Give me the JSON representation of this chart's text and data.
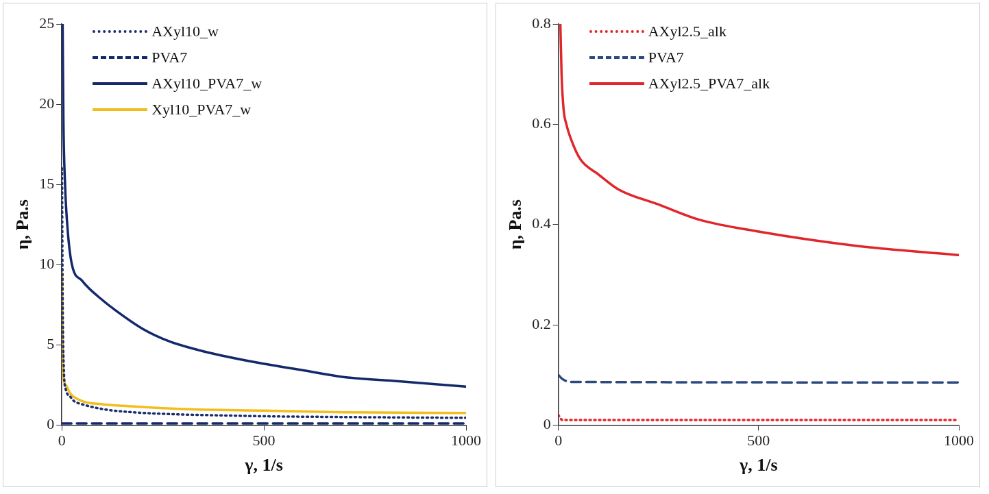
{
  "chart_data": [
    {
      "type": "line",
      "xlabel": "γ, 1/s",
      "ylabel": "η, Pa.s",
      "xlim": [
        0,
        1000
      ],
      "xticks": [
        0,
        500,
        1000
      ],
      "ylim": [
        0,
        25
      ],
      "yticks": [
        0,
        5,
        10,
        15,
        20,
        25
      ],
      "grid": false,
      "legend": "top",
      "marker": "none",
      "series": [
        {
          "name": "AXyl10_w",
          "color": "#1b2f6e",
          "line_style": "dotted",
          "x": [
            0.5,
            2,
            5,
            10,
            20,
            30,
            50,
            100,
            150,
            250,
            400,
            500,
            700,
            1000
          ],
          "values": [
            16,
            8,
            3.5,
            2.2,
            1.8,
            1.5,
            1.3,
            1.0,
            0.85,
            0.7,
            0.6,
            0.55,
            0.5,
            0.45
          ]
        },
        {
          "name": "PVA7",
          "color": "#14296b",
          "line_style": "dashed",
          "x": [
            0,
            1000
          ],
          "values": [
            0.1,
            0.1
          ]
        },
        {
          "name": "AXyl10_PVA7_w",
          "color": "#14296b",
          "line_style": "solid",
          "x": [
            2,
            4,
            8,
            15,
            25,
            50,
            68,
            100,
            125,
            200,
            268,
            350,
            482,
            600,
            696,
            850,
            1000
          ],
          "values": [
            25,
            19,
            15,
            12,
            10,
            9.0,
            8.5,
            7.8,
            7.3,
            6.0,
            5.2,
            4.6,
            3.9,
            3.4,
            3.0,
            2.7,
            2.4
          ]
        },
        {
          "name": "Xyl10_PVA7_w",
          "color": "#f2bd1d",
          "line_style": "solid",
          "x": [
            0.5,
            2,
            4,
            10,
            20,
            50,
            100,
            150,
            300,
            500,
            700,
            1000
          ],
          "values": [
            9.5,
            5,
            3,
            2.5,
            2,
            1.5,
            1.3,
            1.2,
            1.0,
            0.9,
            0.8,
            0.75
          ]
        }
      ]
    },
    {
      "type": "line",
      "xlabel": "γ, 1/s",
      "ylabel": "η, Pa.s",
      "xlim": [
        0,
        1000
      ],
      "xticks": [
        0,
        500,
        1000
      ],
      "ylim": [
        0,
        0.8
      ],
      "yticks": [
        0,
        0.2,
        0.4,
        0.6,
        0.8
      ],
      "grid": false,
      "legend": "top",
      "marker": "none",
      "series": [
        {
          "name": "AXyl2.5_alk",
          "color": "#e0262a",
          "line_style": "dotted",
          "x": [
            0,
            10,
            1000
          ],
          "values": [
            0.02,
            0.01,
            0.01
          ]
        },
        {
          "name": "PVA7",
          "color": "#2d4a80",
          "line_style": "dashed",
          "x": [
            0,
            10,
            30,
            1000
          ],
          "values": [
            0.1,
            0.092,
            0.086,
            0.085
          ]
        },
        {
          "name": "AXyl2.5_PVA7_alk",
          "color": "#e0262a",
          "line_style": "solid",
          "x": [
            5,
            8,
            13,
            20,
            34,
            55,
            100,
            150,
            250,
            350,
            500,
            750,
            1000
          ],
          "values": [
            0.8,
            0.7,
            0.63,
            0.6,
            0.565,
            0.53,
            0.5,
            0.47,
            0.44,
            0.41,
            0.386,
            0.357,
            0.339
          ]
        }
      ]
    }
  ]
}
